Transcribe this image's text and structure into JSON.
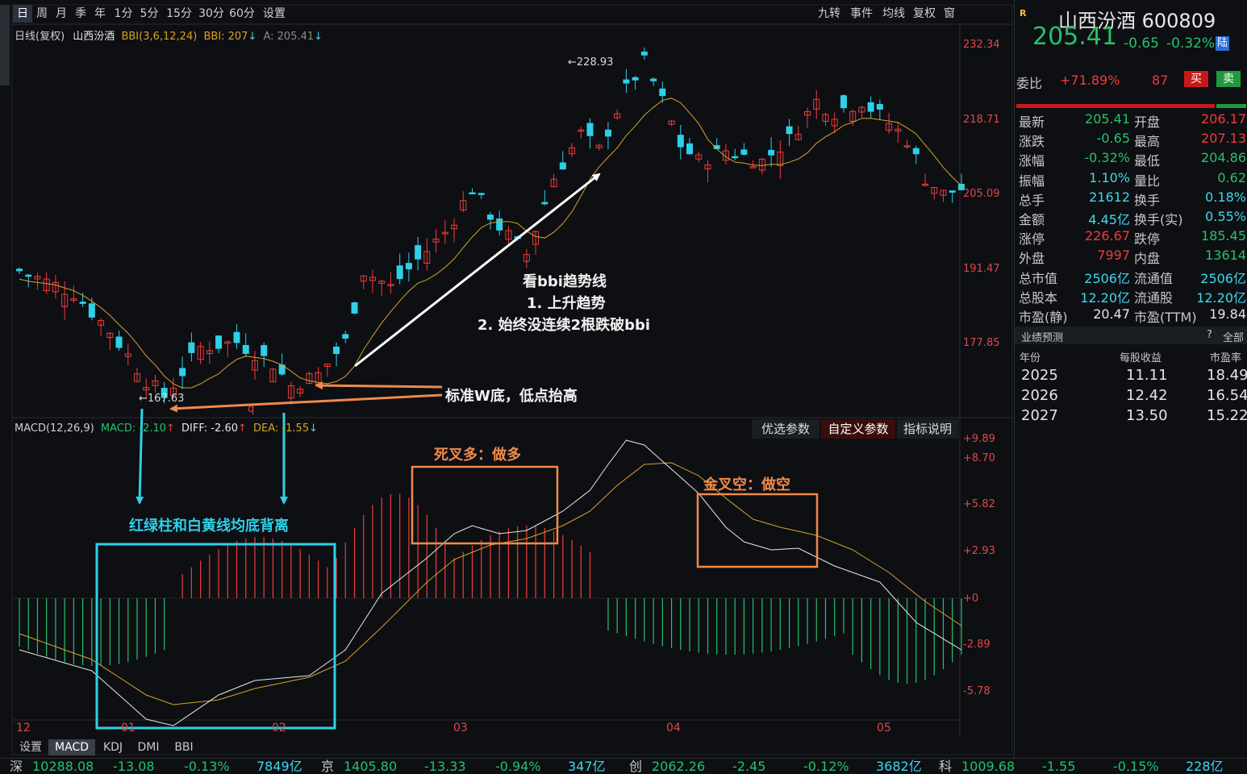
{
  "toolbar": {
    "timeframes": [
      "日",
      "周",
      "月",
      "季",
      "年",
      "1分",
      "5分",
      "15分",
      "30分",
      "60分",
      "设置"
    ],
    "tools": [
      "九转",
      "事件",
      "均线",
      "复权",
      "窗"
    ]
  },
  "main_legend": {
    "period": "日线(复权)",
    "name": "山西汾酒",
    "bbi_params": "BBI(3,6,12,24)",
    "bbi_value": "BBI: 207",
    "a_value": "A: 205.41"
  },
  "price_axis": [
    "232.34",
    "218.71",
    "205.09",
    "191.47",
    "177.85"
  ],
  "price_labels": {
    "high": "228.93",
    "low": "167.63",
    "marker": "q"
  },
  "macd_legend": {
    "title": "MACD(12,26,9)",
    "macd": "MACD: -2.10",
    "diff": "DIFF: -2.60",
    "dea": "DEA: -1.55"
  },
  "macd_buttons": [
    "优选参数",
    "自定义参数",
    "指标说明"
  ],
  "macd_axis": [
    "+9.89",
    "+8.70",
    "+5.82",
    "+2.93",
    "+0",
    "-2.89",
    "-5.78"
  ],
  "dates": [
    "12",
    "01",
    "02",
    "03",
    "04",
    "05"
  ],
  "indicator_tabs": [
    "设置",
    "MACD",
    "KDJ",
    "DMI",
    "BBI"
  ],
  "annotations": {
    "bbi_title": "看bbi趋势线",
    "bbi_1": "1. 上升趋势",
    "bbi_2": "2. 始终没连续2根跌破bbi",
    "w_bottom": "标准W底，低点抬高",
    "divergence": "红绿柱和白黄线均底背离",
    "dead_cross": "死叉多：做多",
    "golden_cross": "金叉空：做空"
  },
  "quote": {
    "badge": "R",
    "name": "山西汾酒 600809",
    "price": "205.41",
    "change": "-0.65",
    "pct": "-0.32%",
    "market_tag": "陆",
    "ratio_label": "委比",
    "ratio_value": "+71.89%",
    "diff_value": "87",
    "buy": "买",
    "sell": "卖",
    "rows": [
      {
        "l1": "最新",
        "v1": "205.41",
        "c1": "green",
        "l2": "开盘",
        "v2": "206.17",
        "c2": "red"
      },
      {
        "l1": "涨跌",
        "v1": "-0.65",
        "c1": "green",
        "l2": "最高",
        "v2": "207.13",
        "c2": "red"
      },
      {
        "l1": "涨幅",
        "v1": "-0.32%",
        "c1": "green",
        "l2": "最低",
        "v2": "204.86",
        "c2": "green"
      },
      {
        "l1": "振幅",
        "v1": "1.10%",
        "c1": "cyan",
        "l2": "量比",
        "v2": "0.62",
        "c2": "green"
      },
      {
        "l1": "总手",
        "v1": "21612",
        "c1": "cyan",
        "l2": "换手",
        "v2": "0.18%",
        "c2": "cyan"
      },
      {
        "l1": "金额",
        "v1": "4.45亿",
        "c1": "cyan",
        "l2": "换手(实)",
        "v2": "0.55%",
        "c2": "cyan"
      },
      {
        "l1": "涨停",
        "v1": "226.67",
        "c1": "red",
        "l2": "跌停",
        "v2": "185.45",
        "c2": "green"
      },
      {
        "l1": "外盘",
        "v1": "7997",
        "c1": "red",
        "l2": "内盘",
        "v2": "13614",
        "c2": "green"
      },
      {
        "l1": "总市值",
        "v1": "2506亿",
        "c1": "cyan",
        "l2": "流通值",
        "v2": "2506亿",
        "c2": "cyan"
      },
      {
        "l1": "总股本",
        "v1": "12.20亿",
        "c1": "cyan",
        "l2": "流通股",
        "v2": "12.20亿",
        "c2": "cyan"
      },
      {
        "l1": "市盈(静)",
        "v1": "20.47",
        "c1": "white",
        "l2": "市盈(TTM)",
        "v2": "19.84",
        "c2": "white"
      }
    ],
    "forecast_title": "业绩预测",
    "forecast_help": "?",
    "forecast_all": "全部",
    "forecast_headers": [
      "年份",
      "每股收益",
      "市盈率"
    ],
    "forecast": [
      {
        "year": "2025",
        "eps": "11.11",
        "pe": "18.49"
      },
      {
        "year": "2026",
        "eps": "12.42",
        "pe": "16.54"
      },
      {
        "year": "2027",
        "eps": "13.50",
        "pe": "15.22"
      }
    ]
  },
  "ticker": [
    {
      "name": "深",
      "value": "10288.08",
      "chg": "-13.08",
      "pct": "-0.13%",
      "amt": "7849亿"
    },
    {
      "name": "京",
      "value": "1405.80",
      "chg": "-13.33",
      "pct": "-0.94%",
      "amt": "347亿"
    },
    {
      "name": "创",
      "value": "2062.26",
      "chg": "-2.45",
      "pct": "-0.12%",
      "amt": "3682亿"
    },
    {
      "name": "科",
      "value": "1009.68",
      "chg": "-1.55",
      "pct": "-0.15%",
      "amt": "228亿"
    }
  ],
  "colors": {
    "up": "#f23b3b",
    "down": "#2ed0e8",
    "bbi": "#d8a227",
    "diff": "#e8e8e8",
    "dea": "#d8a227",
    "annot_orange": "#f08a4b",
    "annot_cyan": "#2ed0e8"
  }
}
